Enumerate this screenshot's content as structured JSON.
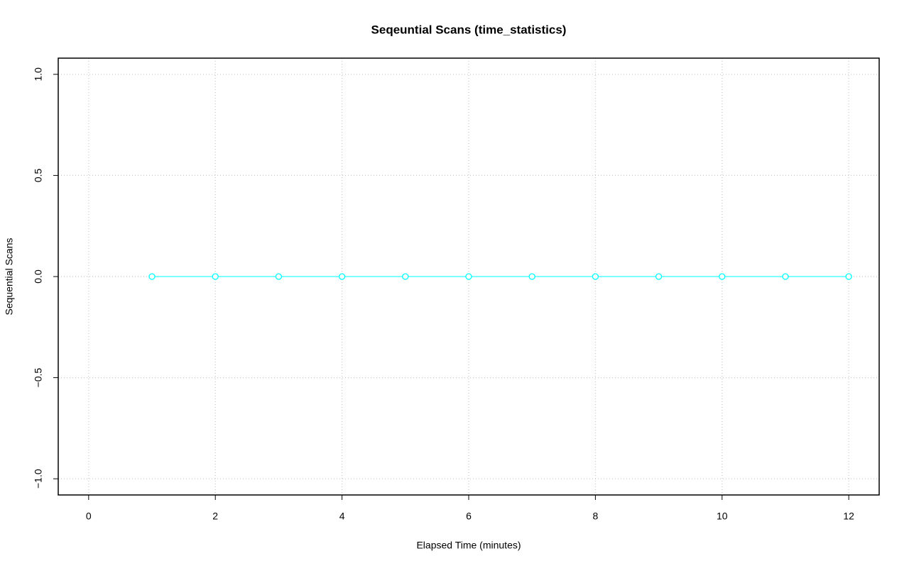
{
  "chart_data": {
    "type": "line",
    "title": "Seqeuntial Scans (time_statistics)",
    "xlabel": "Elapsed Time (minutes)",
    "ylabel": "Sequential Scans",
    "x": [
      1,
      2,
      3,
      4,
      5,
      6,
      7,
      8,
      9,
      10,
      11,
      12
    ],
    "values": [
      0,
      0,
      0,
      0,
      0,
      0,
      0,
      0,
      0,
      0,
      0,
      0
    ],
    "color": "#00ffff",
    "xlim": [
      -0.48,
      12.48
    ],
    "xticks": [
      0,
      2,
      4,
      6,
      8,
      10,
      12
    ],
    "ylim": [
      -1.08,
      1.08
    ],
    "yticks": [
      {
        "value": -1,
        "label": "−1.0"
      },
      {
        "value": -0.5,
        "label": "−0.5"
      },
      {
        "value": 0,
        "label": "0.0"
      },
      {
        "value": 0.5,
        "label": "0.5"
      },
      {
        "value": 1,
        "label": "1.0"
      }
    ],
    "grid": true
  }
}
